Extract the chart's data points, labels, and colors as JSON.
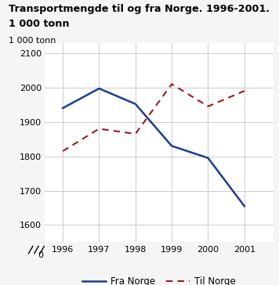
{
  "title_line1": "Transportmengde til og fra Norge. 1996-2001.",
  "title_line2": "1 000 tonn",
  "ylabel": "1 000 tonn",
  "years": [
    1996,
    1997,
    1998,
    1999,
    2000,
    2001
  ],
  "fra_norge": [
    1940,
    1997,
    1952,
    1830,
    1795,
    1655
  ],
  "til_norge": [
    1815,
    1880,
    1865,
    2010,
    1945,
    1990
  ],
  "fra_color": "#1a3f8f",
  "til_color": "#9b1a1a",
  "background_color": "#ffffff",
  "fig_background": "#f5f5f5",
  "teal_color": "#2ab3b8",
  "legend_fra": "Fra Norge",
  "legend_til": "Til Norge",
  "yticks": [
    0,
    1600,
    1700,
    1800,
    1900,
    2000,
    2100
  ],
  "ylim_display_min": 1550,
  "ylim_display_max": 2130,
  "grid_color": "#cccccc"
}
